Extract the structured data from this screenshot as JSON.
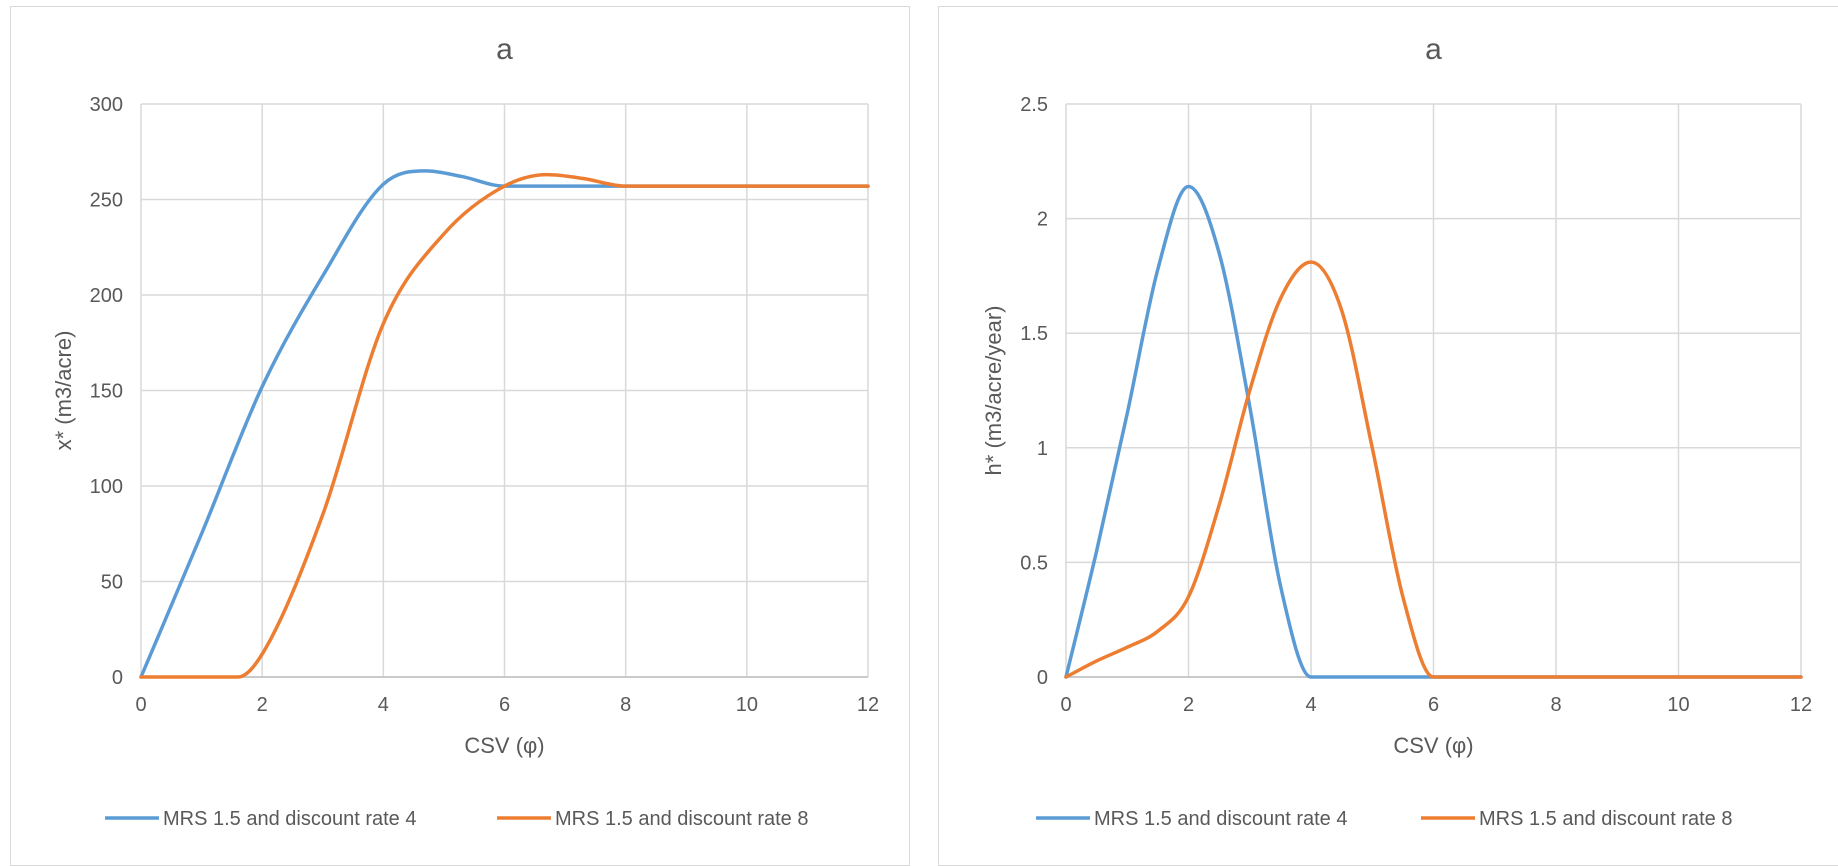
{
  "chart_data": [
    {
      "type": "line",
      "title": "a",
      "xlabel": "CSV (φ)",
      "ylabel": "x* (m3/acre)",
      "xlim": [
        0,
        12
      ],
      "ylim": [
        0,
        300
      ],
      "xticks": [
        0,
        2,
        4,
        6,
        8,
        10,
        12
      ],
      "yticks": [
        0,
        50,
        100,
        150,
        200,
        250,
        300
      ],
      "grid": true,
      "legend_position": "bottom",
      "series": [
        {
          "name": "MRS 1.5 and discount rate 4",
          "color": "#5b9bd5",
          "x": [
            0,
            1,
            2,
            3,
            4,
            4.7,
            5.3,
            6,
            7,
            8,
            9,
            10,
            11,
            12
          ],
          "y": [
            0,
            75,
            152,
            210,
            258,
            265,
            262,
            257,
            257,
            257,
            257,
            257,
            257,
            257
          ]
        },
        {
          "name": "MRS 1.5 and discount rate 8",
          "color": "#ed7d31",
          "x": [
            0,
            0.7,
            1.6,
            2,
            3,
            4,
            5,
            6,
            6.7,
            7.3,
            8,
            9,
            10,
            11,
            12
          ],
          "y": [
            0,
            0,
            0,
            12,
            85,
            185,
            232,
            257,
            263,
            261,
            257,
            257,
            257,
            257,
            257
          ]
        }
      ]
    },
    {
      "type": "line",
      "title": "a",
      "xlabel": "CSV (φ)",
      "ylabel": "h* (m3/acre/year)",
      "xlim": [
        0,
        12
      ],
      "ylim": [
        0,
        2.5
      ],
      "xticks": [
        0,
        2,
        4,
        6,
        8,
        10,
        12
      ],
      "yticks": [
        0,
        0.5,
        1,
        1.5,
        2,
        2.5
      ],
      "grid": true,
      "legend_position": "bottom",
      "series": [
        {
          "name": "MRS 1.5 and discount rate 4",
          "color": "#5b9bd5",
          "x": [
            0,
            0.5,
            1,
            1.5,
            2,
            2.5,
            3,
            3.5,
            4,
            5,
            6,
            7,
            8,
            9,
            10,
            11,
            12
          ],
          "y": [
            0,
            0.55,
            1.15,
            1.78,
            2.14,
            1.85,
            1.18,
            0.4,
            0,
            0,
            0,
            0,
            0,
            0,
            0,
            0,
            0
          ]
        },
        {
          "name": "MRS 1.5 and discount rate 8",
          "color": "#ed7d31",
          "x": [
            0,
            0.5,
            1,
            1.5,
            2,
            2.5,
            3,
            3.5,
            4,
            4.5,
            5,
            5.5,
            6,
            7,
            8,
            9,
            10,
            11,
            12
          ],
          "y": [
            0,
            0.07,
            0.13,
            0.2,
            0.35,
            0.75,
            1.25,
            1.65,
            1.81,
            1.6,
            1.0,
            0.35,
            0,
            0,
            0,
            0,
            0,
            0,
            0
          ]
        }
      ]
    }
  ]
}
